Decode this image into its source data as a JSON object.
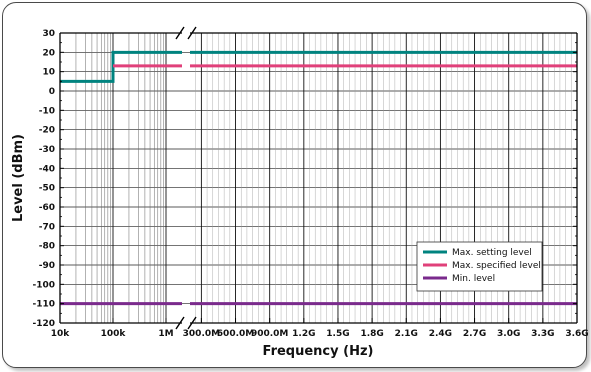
{
  "chart_data": {
    "type": "line",
    "xlabel": "Frequency (Hz)",
    "ylabel": "Level (dBm)",
    "ylim": [
      -120,
      30
    ],
    "yticks": [
      30,
      20,
      10,
      0,
      -10,
      -20,
      -30,
      -40,
      -50,
      -60,
      -70,
      -80,
      -90,
      -100,
      -110,
      -120
    ],
    "x_log_section": {
      "range_hz": [
        10000,
        1000000
      ],
      "scale": "log",
      "tick_labels": [
        {
          "hz": 10000,
          "label": "10k"
        },
        {
          "hz": 100000,
          "label": "100k"
        },
        {
          "hz": 1000000,
          "label": "1M"
        }
      ]
    },
    "x_linear_section": {
      "range_hz": [
        200000000,
        3600000000
      ],
      "scale": "linear",
      "tick_labels": [
        {
          "hz": 300000000,
          "label": "300.0M"
        },
        {
          "hz": 600000000,
          "label": "600.0M"
        },
        {
          "hz": 900000000,
          "label": "900.0M"
        },
        {
          "hz": 1200000000,
          "label": "1.2G"
        },
        {
          "hz": 1500000000,
          "label": "1.5G"
        },
        {
          "hz": 1800000000,
          "label": "1.8G"
        },
        {
          "hz": 2100000000,
          "label": "2.1G"
        },
        {
          "hz": 2400000000,
          "label": "2.4G"
        },
        {
          "hz": 2700000000,
          "label": "2.7G"
        },
        {
          "hz": 3000000000,
          "label": "3.0G"
        },
        {
          "hz": 3300000000,
          "label": "3.3G"
        },
        {
          "hz": 3600000000,
          "label": "3.6G"
        }
      ]
    },
    "axis_break": true,
    "grid": true,
    "legend_position": "bottom-right",
    "series": [
      {
        "name": "Max. setting level",
        "color": "#00837f",
        "points": [
          {
            "x": 10000,
            "y": 5
          },
          {
            "x": 100000,
            "y": 5
          },
          {
            "x": 100000,
            "y": 20
          },
          {
            "x": 3600000000,
            "y": 20
          }
        ]
      },
      {
        "name": "Max. specified level",
        "color": "#e0407a",
        "points": [
          {
            "x": 100000,
            "y": 13
          },
          {
            "x": 3600000000,
            "y": 13
          }
        ]
      },
      {
        "name": "Min. level",
        "color": "#7a2a8c",
        "points": [
          {
            "x": 10000,
            "y": -110
          },
          {
            "x": 3600000000,
            "y": -110
          }
        ]
      }
    ]
  }
}
